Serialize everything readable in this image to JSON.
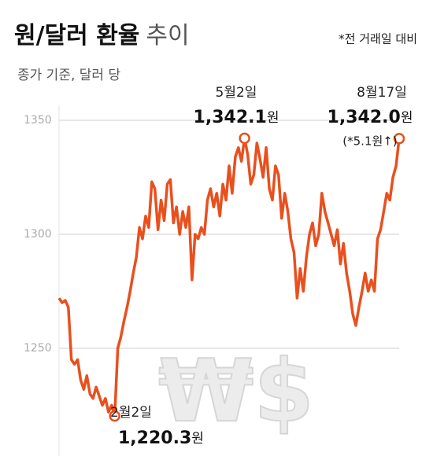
{
  "chart_data": {
    "type": "line",
    "title": "원/달러 환율",
    "title_suffix": "추이",
    "subtitle": "종가 기준, 달러 당",
    "note": "*전 거래일 대비",
    "watermark": "₩$",
    "color": "#e8501e",
    "grid": true,
    "ylim": [
      1205,
      1360
    ],
    "yticks": [
      1250,
      1300,
      1350
    ],
    "values": [
      1272,
      1270,
      1271,
      1268,
      1245,
      1243,
      1245,
      1236,
      1232,
      1238,
      1230,
      1228,
      1233,
      1229,
      1225,
      1228,
      1222,
      1225,
      1220.3,
      1250,
      1255,
      1262,
      1268,
      1275,
      1283,
      1290,
      1303,
      1298,
      1308,
      1303,
      1323,
      1320,
      1302,
      1315,
      1306,
      1322,
      1324,
      1305,
      1312,
      1300,
      1310,
      1303,
      1312,
      1280,
      1300,
      1298,
      1303,
      1300,
      1315,
      1320,
      1312,
      1318,
      1308,
      1322,
      1315,
      1330,
      1318,
      1334,
      1338,
      1332,
      1342.1,
      1335,
      1322,
      1326,
      1340,
      1333,
      1325,
      1338,
      1320,
      1315,
      1330,
      1326,
      1307,
      1318,
      1310,
      1298,
      1292,
      1272,
      1285,
      1275,
      1290,
      1300,
      1305,
      1295,
      1300,
      1318,
      1310,
      1305,
      1300,
      1295,
      1302,
      1287,
      1296,
      1283,
      1275,
      1265,
      1260,
      1268,
      1275,
      1283,
      1275,
      1280,
      1275,
      1298,
      1302,
      1310,
      1318,
      1315,
      1325,
      1330,
      1342.0
    ],
    "annotations": [
      {
        "date": "2월2일",
        "value": 1220.3,
        "value_label": "1,220.3",
        "unit": "원"
      },
      {
        "date": "5월2일",
        "value": 1342.1,
        "value_label": "1,342.1",
        "unit": "원"
      },
      {
        "date": "8월17일",
        "value": 1342.0,
        "value_label": "1,342.0",
        "unit": "원",
        "change": "(*5.1원↑)"
      }
    ]
  }
}
